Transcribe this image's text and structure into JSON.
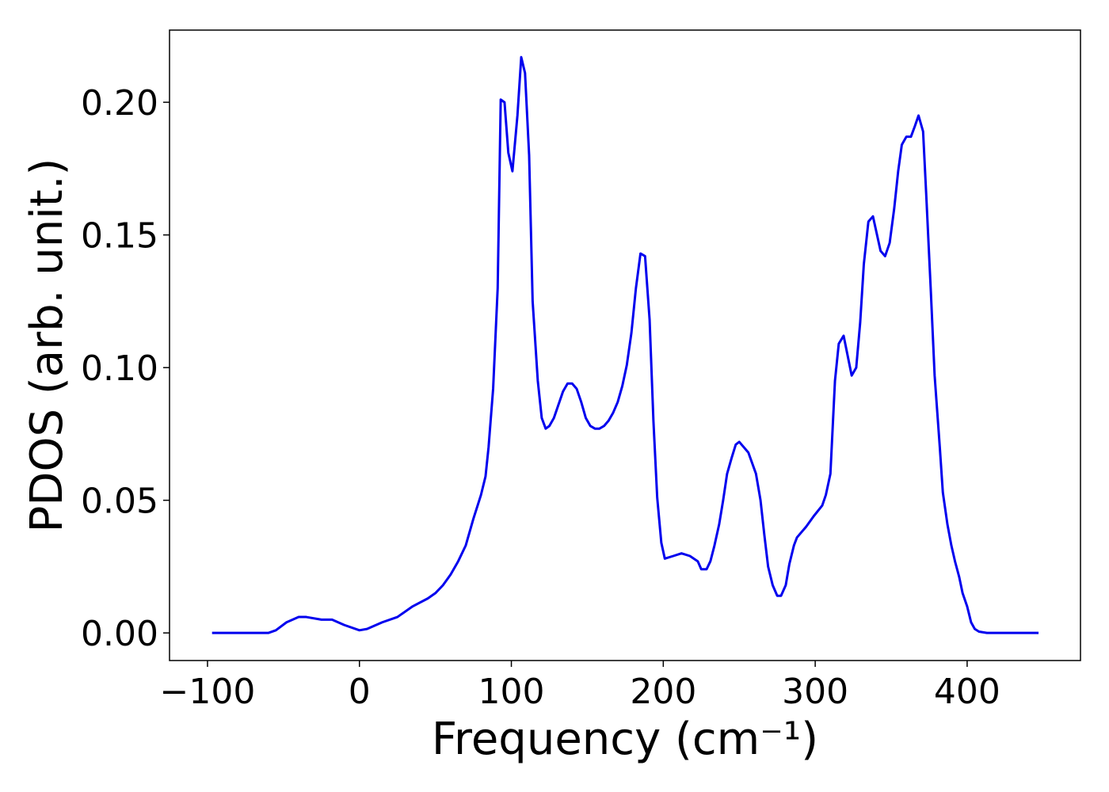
{
  "chart_data": {
    "type": "line",
    "xlabel": "Frequency (cm⁻¹)",
    "ylabel": "PDOS (arb. unit.)",
    "xlim": [
      -125,
      474.6
    ],
    "ylim": [
      -0.0104,
      0.2272
    ],
    "xticks": [
      {
        "value": -100,
        "label": "−100"
      },
      0,
      100,
      200,
      300,
      400
    ],
    "yticks": [
      {
        "value": 0,
        "label": "0.00"
      },
      {
        "value": 0.05,
        "label": "0.05"
      },
      {
        "value": 0.1,
        "label": "0.10"
      },
      {
        "value": 0.15,
        "label": "0.15"
      },
      {
        "value": 0.2,
        "label": "0.20"
      }
    ],
    "series": [
      {
        "color": "#0000ee",
        "x": [
          -97,
          -60,
          -55,
          -48,
          -40,
          -35,
          -25,
          -18,
          -10,
          0,
          5,
          15,
          25,
          35,
          45,
          50,
          55,
          60,
          65,
          70,
          75,
          80,
          83,
          85,
          88,
          91,
          93,
          95.5,
          98,
          100.7,
          104,
          106.5,
          109,
          111.7,
          114,
          117.4,
          120,
          122.6,
          125,
          128,
          131,
          134,
          137,
          140,
          143,
          146,
          149,
          152,
          155,
          158,
          161,
          164,
          167,
          170,
          173,
          176,
          179,
          182,
          185,
          188,
          191,
          193.5,
          196,
          198.7,
          201,
          206.6,
          212,
          217.5,
          222.7,
          225,
          228.5,
          231,
          233.7,
          236.8,
          239.4,
          242,
          245,
          247.7,
          250,
          256,
          261,
          264,
          266.5,
          269,
          272,
          275,
          277.5,
          280.6,
          283,
          286,
          288,
          294,
          299,
          304.6,
          307,
          310,
          313,
          315.5,
          318.7,
          324,
          327,
          329.6,
          332,
          335,
          338,
          343,
          346,
          349,
          352,
          354.6,
          357,
          360,
          363,
          365.6,
          368,
          371,
          373,
          376,
          378.6,
          382,
          384,
          387,
          389.6,
          392,
          394.8,
          397,
          400,
          402.6,
          405,
          407.8,
          413,
          447
        ],
        "values": [
          0,
          0,
          0.001,
          0.004,
          0.006,
          0.006,
          0.005,
          0.005,
          0.003,
          0.001,
          0.0015,
          0.004,
          0.006,
          0.01,
          0.013,
          0.015,
          0.018,
          0.022,
          0.027,
          0.033,
          0.043,
          0.052,
          0.059,
          0.07,
          0.092,
          0.13,
          0.201,
          0.2,
          0.181,
          0.174,
          0.195,
          0.217,
          0.211,
          0.18,
          0.125,
          0.095,
          0.081,
          0.077,
          0.078,
          0.081,
          0.086,
          0.091,
          0.094,
          0.094,
          0.092,
          0.087,
          0.081,
          0.078,
          0.077,
          0.077,
          0.078,
          0.08,
          0.083,
          0.087,
          0.093,
          0.101,
          0.113,
          0.13,
          0.143,
          0.142,
          0.118,
          0.08,
          0.051,
          0.034,
          0.028,
          0.029,
          0.03,
          0.029,
          0.027,
          0.024,
          0.024,
          0.027,
          0.033,
          0.041,
          0.05,
          0.06,
          0.066,
          0.071,
          0.072,
          0.068,
          0.06,
          0.05,
          0.037,
          0.025,
          0.018,
          0.014,
          0.014,
          0.018,
          0.026,
          0.033,
          0.036,
          0.04,
          0.044,
          0.048,
          0.052,
          0.06,
          0.095,
          0.109,
          0.112,
          0.097,
          0.1,
          0.117,
          0.139,
          0.155,
          0.157,
          0.144,
          0.142,
          0.147,
          0.16,
          0.174,
          0.184,
          0.187,
          0.187,
          0.191,
          0.195,
          0.189,
          0.166,
          0.13,
          0.097,
          0.07,
          0.053,
          0.041,
          0.033,
          0.027,
          0.021,
          0.015,
          0.01,
          0.004,
          0.0015,
          0.0005,
          0,
          0
        ]
      }
    ]
  }
}
